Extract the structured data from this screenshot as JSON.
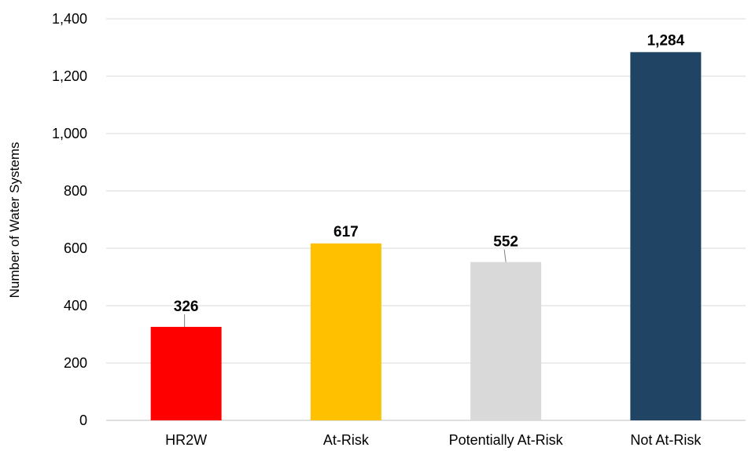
{
  "chart_data": {
    "type": "bar",
    "title": "",
    "xlabel": "",
    "ylabel": "Number of Water Systems",
    "categories": [
      "HR2W",
      "At-Risk",
      "Potentially At-Risk",
      "Not At-Risk"
    ],
    "values": [
      326,
      617,
      552,
      1284
    ],
    "value_labels": [
      "326",
      "617",
      "552",
      "1,284"
    ],
    "colors": [
      "#ff0000",
      "#ffc000",
      "#d9d9d9",
      "#1f4464"
    ],
    "ylim": [
      0,
      1400
    ],
    "yticks": [
      0,
      200,
      400,
      600,
      800,
      1000,
      1200,
      1400
    ],
    "ytick_labels": [
      "0",
      "200",
      "400",
      "600",
      "800",
      "1,000",
      "1,200",
      "1,400"
    ],
    "grid": true,
    "legend": "none"
  }
}
